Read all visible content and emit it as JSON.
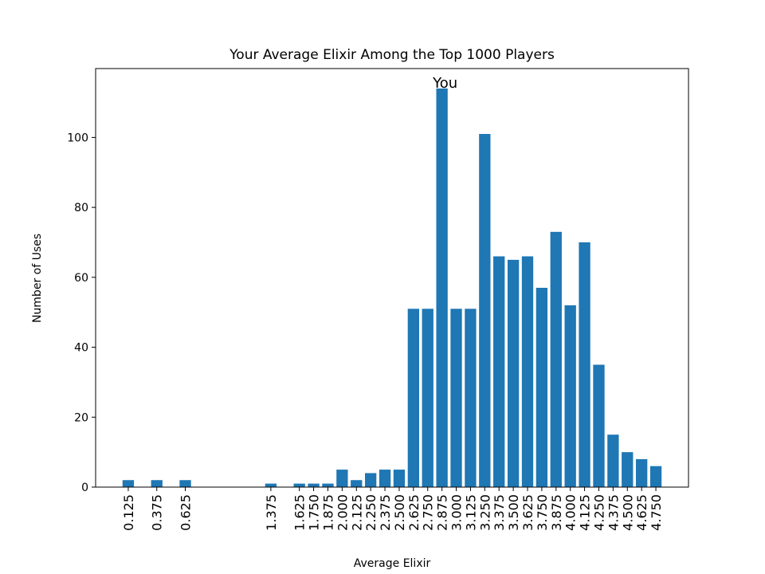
{
  "chart_data": {
    "type": "bar",
    "title": "Your Average Elixir Among the Top 1000 Players",
    "x_label": "Average Elixir",
    "y_label": "Number of Uses",
    "x": [
      0.125,
      0.375,
      0.625,
      1.375,
      1.625,
      1.75,
      1.875,
      2.0,
      2.125,
      2.25,
      2.375,
      2.5,
      2.625,
      2.75,
      2.875,
      3.0,
      3.125,
      3.25,
      3.375,
      3.5,
      3.625,
      3.75,
      3.875,
      4.0,
      4.125,
      4.25,
      4.375,
      4.5,
      4.625,
      4.75
    ],
    "values": [
      2,
      2,
      2,
      1,
      1,
      1,
      1,
      5,
      2,
      4,
      5,
      5,
      51,
      51,
      114,
      51,
      51,
      101,
      66,
      65,
      66,
      57,
      73,
      52,
      70,
      35,
      15,
      10,
      8,
      6
    ],
    "color": "#1f77b4",
    "xlim": [
      -0.161,
      5.036
    ],
    "ylim": [
      0,
      119.7
    ],
    "xticks": [
      0.125,
      0.375,
      0.625,
      1.375,
      1.625,
      {
        "value": 1.75,
        "label": "1.750"
      },
      1.875,
      {
        "value": 2.0,
        "label": "2.000"
      },
      2.125,
      {
        "value": 2.25,
        "label": "2.250"
      },
      2.375,
      {
        "value": 2.5,
        "label": "2.500"
      },
      2.625,
      {
        "value": 2.75,
        "label": "2.750"
      },
      2.875,
      {
        "value": 3.0,
        "label": "3.000"
      },
      3.125,
      {
        "value": 3.25,
        "label": "3.250"
      },
      3.375,
      {
        "value": 3.5,
        "label": "3.500"
      },
      3.625,
      {
        "value": 3.75,
        "label": "3.750"
      },
      3.875,
      {
        "value": 4.0,
        "label": "4.000"
      },
      4.125,
      {
        "value": 4.25,
        "label": "4.250"
      },
      4.375,
      {
        "value": 4.5,
        "label": "4.500"
      },
      4.625,
      {
        "value": 4.75,
        "label": "4.750"
      }
    ],
    "yticks": [
      0,
      20,
      40,
      60,
      80,
      100
    ],
    "annotations": [
      {
        "text": "You",
        "x": 2.875,
        "y": 114
      }
    ],
    "grid": false
  }
}
